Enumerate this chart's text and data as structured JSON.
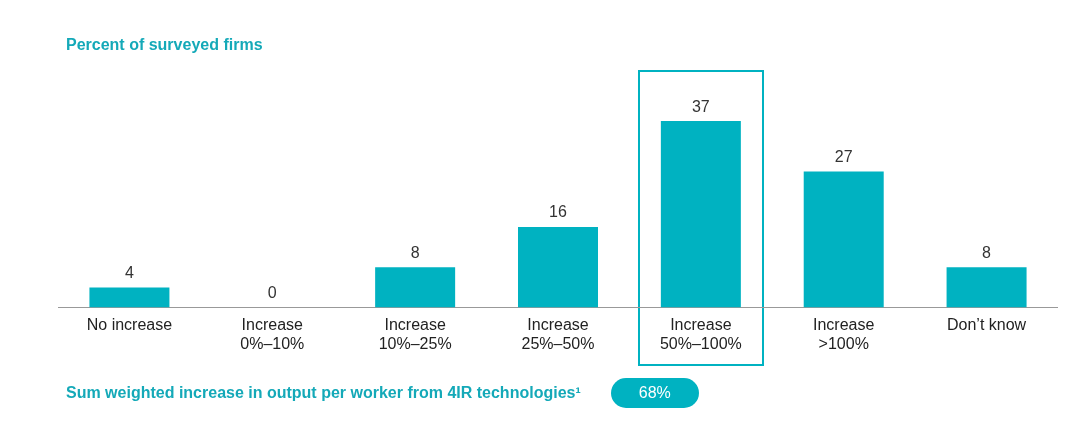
{
  "chart_data": {
    "type": "bar",
    "title": "Percent of surveyed firms",
    "categories": [
      "No increase",
      "Increase\n0%–10%",
      "Increase\n10%–25%",
      "Increase\n25%–50%",
      "Increase\n50%–100%",
      "Increase\n>100%",
      "Don’t know"
    ],
    "values": [
      4,
      0,
      8,
      16,
      37,
      27,
      8
    ],
    "color": "#00b2c1",
    "data_labels": true,
    "grid": false,
    "legend": false,
    "annotations": [
      "Sum weighted increase in output per worker from 4IR technologies¹",
      "68%"
    ]
  }
}
